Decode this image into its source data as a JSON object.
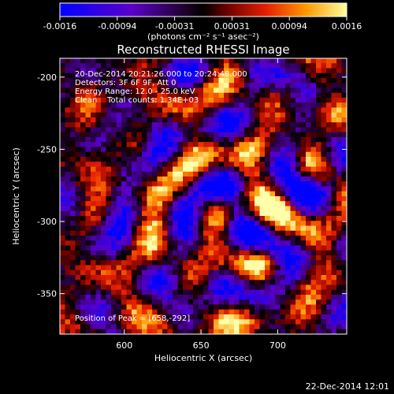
{
  "colorbar": {
    "ticks": [
      "-0.0016",
      "-0.00094",
      "-0.00031",
      "0.00031",
      "0.00094",
      "0.0016"
    ],
    "units_label": "(photons cm⁻² s⁻¹ asec⁻²)"
  },
  "chart_data": {
    "type": "heatmap",
    "title": "Reconstructed RHESSI Image",
    "xlabel": "Heliocentric X (arcsec)",
    "ylabel": "Heliocentric Y (arcsec)",
    "xlim": [
      558,
      745
    ],
    "ylim": [
      -378,
      -187
    ],
    "xticks": [
      "600",
      "650",
      "700"
    ],
    "yticks": [
      "-200",
      "-250",
      "-300",
      "-350"
    ],
    "xtick_values": [
      600,
      650,
      700
    ],
    "ytick_values": [
      -200,
      -250,
      -300,
      -350
    ],
    "colorbar_range": [
      -0.0016,
      0.0016
    ],
    "colormap": "rhessi-blue-red-yellow",
    "peak": {
      "x": 658,
      "y": -292
    },
    "annotations": {
      "time": "20-Dec-2014 20:21:26.000 to 20:24:48.000",
      "detectors": "Detectors: 3F 6F 9F, Att 0",
      "energy": "Energy Range: 12.0 - 25.0 keV",
      "clean": "Clean    Total counts: 1.34E+03",
      "peak_text": "Position of Peak = [658,-292]"
    }
  },
  "footer": {
    "timestamp": "22-Dec-2014 12:01"
  },
  "colors": {
    "background": "#000000",
    "text": "#ffffff"
  }
}
